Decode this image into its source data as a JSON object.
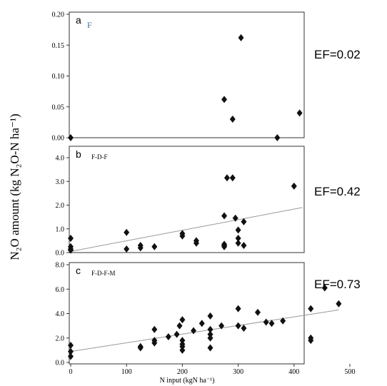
{
  "chart_data": [
    {
      "type": "scatter",
      "panel": "a",
      "subtitle": "F",
      "annotation": "EF=0.02",
      "xlim": [
        0,
        500
      ],
      "ylim": [
        0,
        0.2
      ],
      "yticks": [
        "0.00",
        "0.05",
        "0.10",
        "0.15",
        "0.20"
      ],
      "xticks": [],
      "points": [
        [
          0,
          0.0
        ],
        [
          275,
          0.062
        ],
        [
          290,
          0.03
        ],
        [
          305,
          0.162
        ],
        [
          370,
          0.0
        ],
        [
          410,
          0.04
        ]
      ],
      "trendline": null
    },
    {
      "type": "scatter",
      "panel": "b",
      "subtitle": "F-D-F",
      "annotation": "EF=0.42",
      "xlim": [
        0,
        500
      ],
      "ylim": [
        0,
        4
      ],
      "yticks": [
        "0.0",
        "1.0",
        "2.0",
        "3.0",
        "4.0"
      ],
      "xticks": [],
      "points": [
        [
          0,
          0.6
        ],
        [
          0,
          0.25
        ],
        [
          0,
          0.15
        ],
        [
          0,
          0.1
        ],
        [
          100,
          0.85
        ],
        [
          100,
          0.15
        ],
        [
          125,
          0.3
        ],
        [
          125,
          0.2
        ],
        [
          150,
          0.25
        ],
        [
          200,
          0.8
        ],
        [
          200,
          0.7
        ],
        [
          225,
          0.5
        ],
        [
          225,
          0.4
        ],
        [
          275,
          1.55
        ],
        [
          275,
          0.35
        ],
        [
          275,
          0.3
        ],
        [
          275,
          0.25
        ],
        [
          280,
          3.15
        ],
        [
          290,
          3.15
        ],
        [
          295,
          1.45
        ],
        [
          300,
          0.95
        ],
        [
          300,
          0.6
        ],
        [
          300,
          0.4
        ],
        [
          310,
          1.3
        ],
        [
          310,
          0.3
        ],
        [
          400,
          2.8
        ]
      ],
      "trendline": [
        [
          0,
          0.05
        ],
        [
          415,
          1.9
        ]
      ]
    },
    {
      "type": "scatter",
      "panel": "c",
      "subtitle": "F-D-F-M",
      "annotation": "EF=0.73",
      "xlabel": "N input (kgN ha⁻¹)",
      "xlim": [
        0,
        500
      ],
      "ylim": [
        0,
        8
      ],
      "yticks": [
        "0.0",
        "2.0",
        "4.0",
        "6.0",
        "8.0"
      ],
      "xticks": [
        "0",
        "100",
        "200",
        "300",
        "400",
        "500"
      ],
      "points": [
        [
          0,
          1.4
        ],
        [
          0,
          0.9
        ],
        [
          0,
          0.5
        ],
        [
          125,
          1.3
        ],
        [
          125,
          1.2
        ],
        [
          150,
          2.7
        ],
        [
          150,
          1.8
        ],
        [
          150,
          1.6
        ],
        [
          175,
          2.1
        ],
        [
          190,
          2.3
        ],
        [
          195,
          3.0
        ],
        [
          200,
          3.5
        ],
        [
          200,
          1.8
        ],
        [
          200,
          1.5
        ],
        [
          200,
          1.3
        ],
        [
          200,
          1.0
        ],
        [
          220,
          2.6
        ],
        [
          235,
          3.2
        ],
        [
          250,
          3.8
        ],
        [
          250,
          2.7
        ],
        [
          250,
          2.3
        ],
        [
          250,
          2.0
        ],
        [
          250,
          1.2
        ],
        [
          270,
          3.0
        ],
        [
          300,
          4.4
        ],
        [
          300,
          3.0
        ],
        [
          310,
          2.8
        ],
        [
          335,
          4.1
        ],
        [
          350,
          3.3
        ],
        [
          360,
          3.2
        ],
        [
          380,
          3.4
        ],
        [
          430,
          4.4
        ],
        [
          430,
          2.0
        ],
        [
          430,
          1.8
        ],
        [
          455,
          6.1
        ],
        [
          480,
          4.8
        ]
      ],
      "trendline": [
        [
          0,
          0.9
        ],
        [
          480,
          4.3
        ]
      ]
    }
  ],
  "ylabel": "N₂O amount (kg N₂O-N ha⁻¹)",
  "colors": {
    "marker": "#111111",
    "trendline": "#999999",
    "axis": "#333333"
  }
}
